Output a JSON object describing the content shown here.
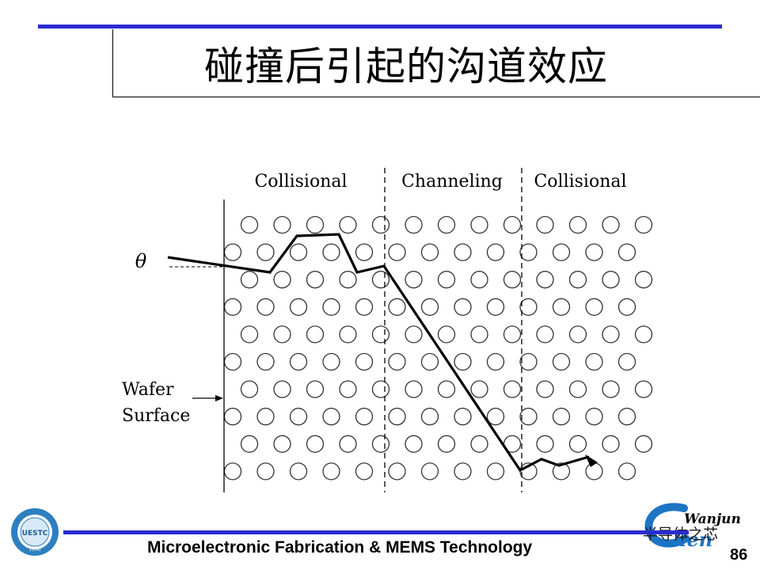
{
  "slide": {
    "title": "碰撞后引起的沟道效应",
    "footer": "Microelectronic Fabrication & MEMS Technology",
    "page_number": "86",
    "watermark": "半导体之芯",
    "right_logo_text": "Wanjun",
    "right_logo_letters": "hen",
    "left_logo_text": "UESTC",
    "left_logo_year": "1956",
    "accent_color": "#2a2ad0"
  },
  "diagram": {
    "regions": [
      "Collisional",
      "Channeling",
      "Collisional"
    ],
    "angle_symbol": "θ",
    "wafer_label_line1": "Wafer",
    "wafer_label_line2": "Surface"
  }
}
